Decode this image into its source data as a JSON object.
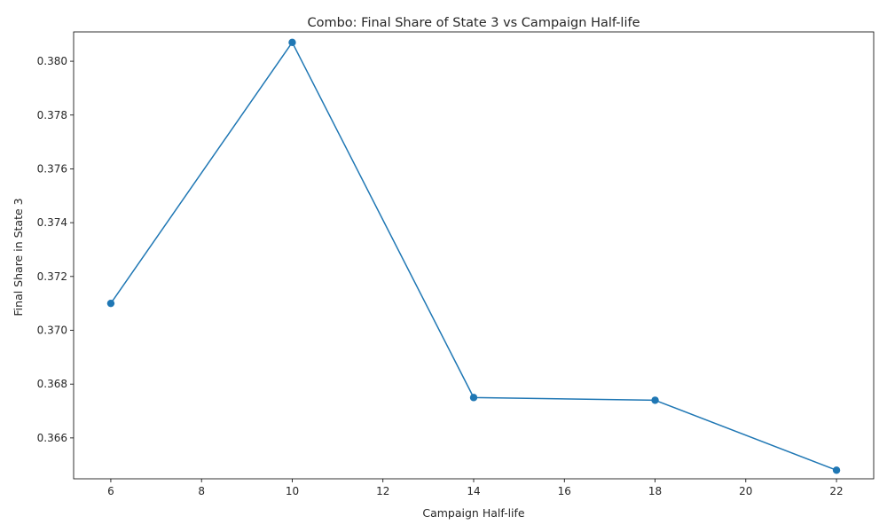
{
  "chart_data": {
    "type": "line",
    "title": "Combo: Final Share of State 3 vs Campaign Half-life",
    "xlabel": "Campaign Half-life",
    "ylabel": "Final Share in State 3",
    "xlim": [
      5.18,
      22.82
    ],
    "ylim": [
      0.36448,
      0.38109
    ],
    "xticks": [
      6,
      8,
      10,
      12,
      14,
      16,
      18,
      20,
      22
    ],
    "yticks": [
      0.366,
      0.368,
      0.37,
      0.372,
      0.374,
      0.376,
      0.378,
      0.38
    ],
    "ytick_labels": [
      "0.366",
      "0.368",
      "0.370",
      "0.372",
      "0.374",
      "0.376",
      "0.378",
      "0.380"
    ],
    "grid": false,
    "legend": "none",
    "marker": "circle",
    "series": [
      {
        "color": "#1f77b4",
        "x": [
          6,
          10,
          14,
          18,
          22
        ],
        "y": [
          0.371,
          0.3807,
          0.3675,
          0.3674,
          0.3648
        ]
      }
    ]
  }
}
